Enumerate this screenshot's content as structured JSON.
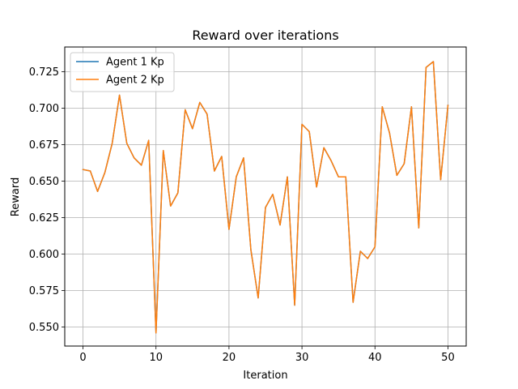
{
  "chart_data": {
    "type": "line",
    "title": "Reward over iterations",
    "xlabel": "Iteration",
    "ylabel": "Reward",
    "xlim": [
      -2.5,
      52.5
    ],
    "ylim": [
      0.537,
      0.742
    ],
    "xticks": [
      0,
      10,
      20,
      30,
      40,
      50
    ],
    "yticks": [
      0.55,
      0.575,
      0.6,
      0.625,
      0.65,
      0.675,
      0.7,
      0.725
    ],
    "grid": true,
    "legend_position": "top-left",
    "x": [
      0,
      1,
      2,
      3,
      4,
      5,
      6,
      7,
      8,
      9,
      10,
      11,
      12,
      13,
      14,
      15,
      16,
      17,
      18,
      19,
      20,
      21,
      22,
      23,
      24,
      25,
      26,
      27,
      28,
      29,
      30,
      31,
      32,
      33,
      34,
      35,
      36,
      37,
      38,
      39,
      40,
      41,
      42,
      43,
      44,
      45,
      46,
      47,
      48,
      49,
      50
    ],
    "series": [
      {
        "name": "Agent 1 Kp",
        "color": "#1f77b4",
        "values": [
          0.658,
          0.657,
          0.643,
          0.656,
          0.676,
          0.709,
          0.676,
          0.666,
          0.661,
          0.678,
          0.546,
          0.671,
          0.633,
          0.642,
          0.699,
          0.686,
          0.704,
          0.696,
          0.657,
          0.667,
          0.617,
          0.653,
          0.666,
          0.603,
          0.57,
          0.632,
          0.641,
          0.62,
          0.653,
          0.565,
          0.689,
          0.684,
          0.646,
          0.673,
          0.664,
          0.653,
          0.653,
          0.567,
          0.602,
          0.597,
          0.605,
          0.701,
          0.683,
          0.654,
          0.662,
          0.701,
          0.618,
          0.728,
          0.732,
          0.651,
          0.702
        ]
      },
      {
        "name": "Agent 2 Kp",
        "color": "#ff7f0e",
        "values": [
          0.658,
          0.657,
          0.643,
          0.656,
          0.676,
          0.709,
          0.676,
          0.666,
          0.661,
          0.678,
          0.546,
          0.671,
          0.633,
          0.642,
          0.699,
          0.686,
          0.704,
          0.696,
          0.657,
          0.667,
          0.617,
          0.653,
          0.666,
          0.603,
          0.57,
          0.632,
          0.641,
          0.62,
          0.653,
          0.565,
          0.689,
          0.684,
          0.646,
          0.673,
          0.664,
          0.653,
          0.653,
          0.567,
          0.602,
          0.597,
          0.605,
          0.701,
          0.683,
          0.654,
          0.662,
          0.701,
          0.618,
          0.728,
          0.732,
          0.651,
          0.702
        ]
      }
    ]
  }
}
